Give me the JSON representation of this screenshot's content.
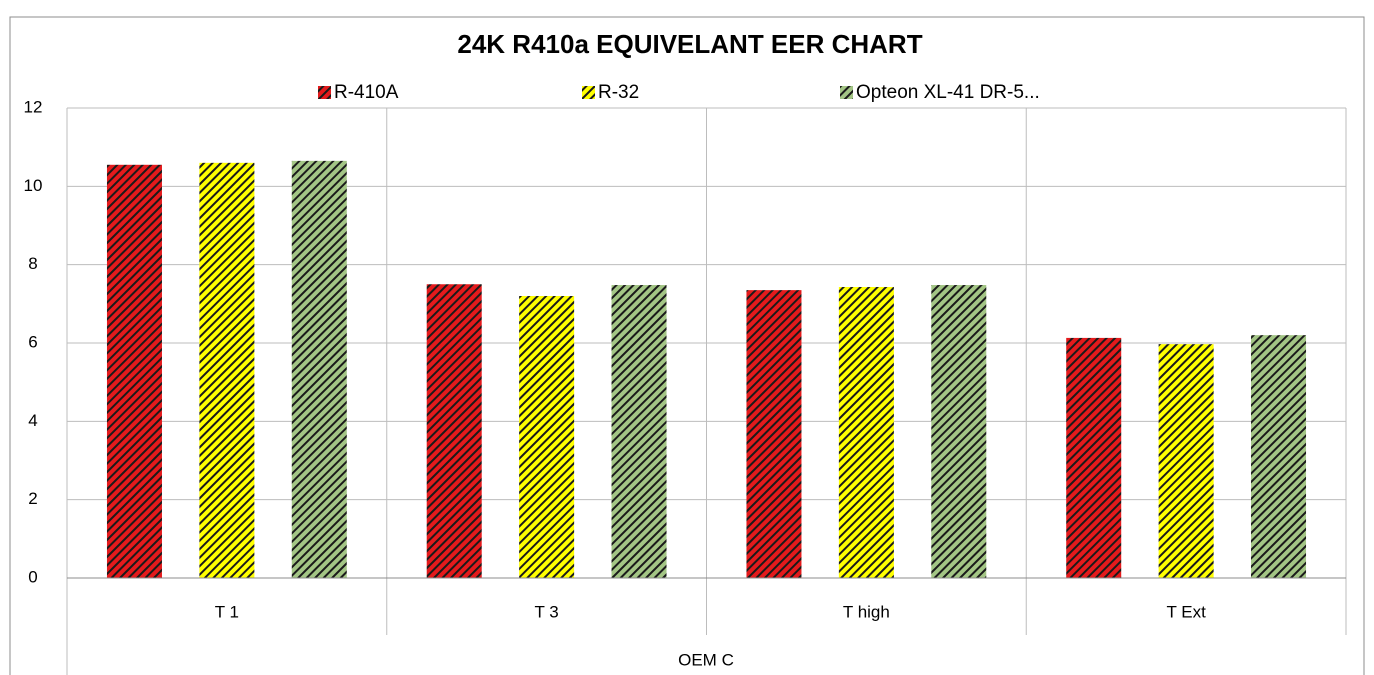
{
  "chart_data": {
    "type": "bar",
    "title": "24K R410a EQUIVELANT EER CHART",
    "categories": [
      "T 1",
      "T 3",
      "T high",
      "T Ext"
    ],
    "group_label": "OEM C",
    "series": [
      {
        "name": "R-410A",
        "color": "#e41a1c",
        "values": [
          10.55,
          7.5,
          7.35,
          6.13
        ]
      },
      {
        "name": "R-32",
        "color": "#ffff00",
        "values": [
          10.6,
          7.2,
          7.43,
          5.97
        ]
      },
      {
        "name": "Opteon XL-41 DR-5...",
        "color": "#a3c585",
        "values": [
          10.65,
          7.48,
          7.48,
          6.2
        ]
      }
    ],
    "ylim": [
      0,
      12
    ],
    "yticks": [
      0,
      2,
      4,
      6,
      8,
      10,
      12
    ],
    "grid": true,
    "legend": "top",
    "pattern": "hatched"
  }
}
